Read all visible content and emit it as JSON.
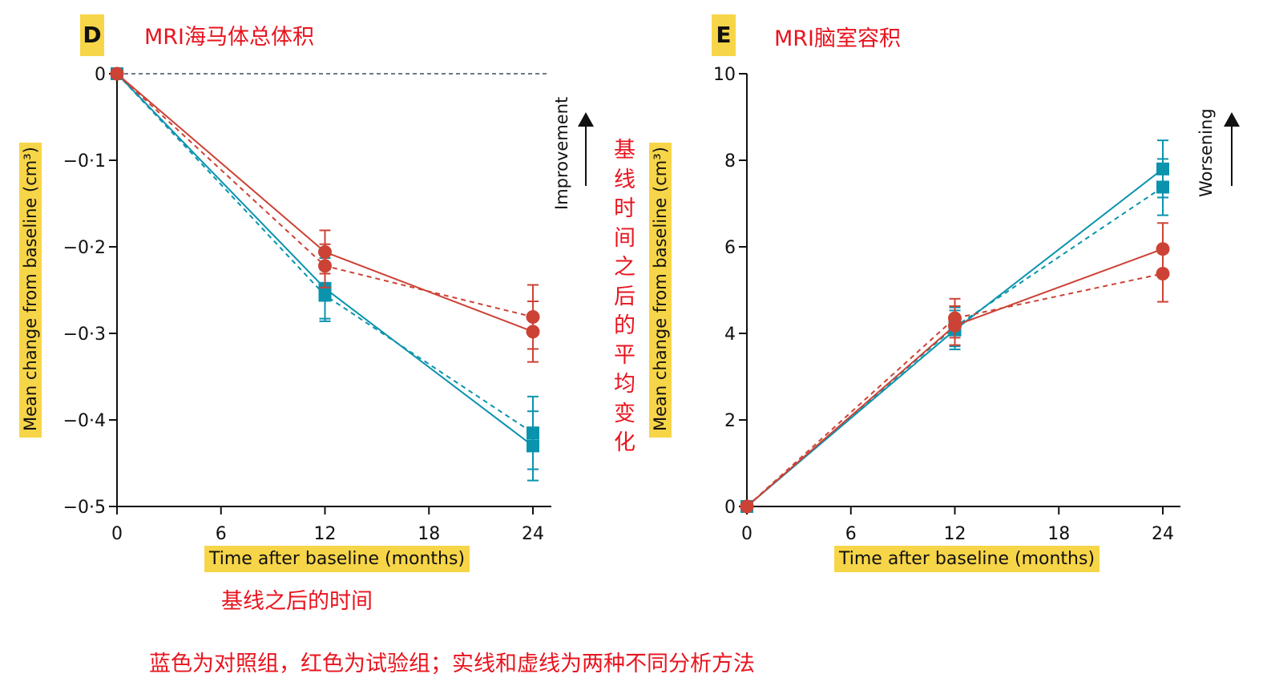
{
  "chart_data": [
    {
      "type": "line",
      "panel": "D",
      "title": "MRI海马体总体积",
      "xlabel": "Time after baseline (months)",
      "ylabel": "Mean change from baseline (cm³)",
      "direction_label": "Improvement",
      "x_ticks": [
        "0",
        "6",
        "12",
        "18",
        "24"
      ],
      "y_ticks": [
        "0",
        "−0·1",
        "−0·2",
        "−0·3",
        "−0·4",
        "−0·5"
      ],
      "xlim": [
        0,
        24
      ],
      "ylim": [
        -0.5,
        0
      ],
      "reference_line": 0,
      "x": [
        0,
        12,
        24
      ],
      "series": [
        {
          "name": "control-solid",
          "color": "#0a93ad",
          "dashed": false,
          "marker": "square",
          "values": [
            0,
            -0.248,
            -0.43
          ],
          "errors": [
            0,
            0.035,
            0.04
          ]
        },
        {
          "name": "control-dashed",
          "color": "#0a93ad",
          "dashed": true,
          "marker": "square",
          "values": [
            0,
            -0.256,
            -0.415
          ],
          "errors": [
            0,
            0.03,
            0.042
          ]
        },
        {
          "name": "trial-solid",
          "color": "#cc4235",
          "dashed": false,
          "marker": "circle",
          "values": [
            0,
            -0.206,
            -0.298
          ],
          "errors": [
            0,
            0.025,
            0.035
          ]
        },
        {
          "name": "trial-dashed",
          "color": "#cc4235",
          "dashed": true,
          "marker": "circle",
          "values": [
            0,
            -0.222,
            -0.281
          ],
          "errors": [
            0,
            0.025,
            0.037
          ]
        }
      ]
    },
    {
      "type": "line",
      "panel": "E",
      "title": "MRI脑室容积",
      "xlabel": "Time after baseline (months)",
      "ylabel": "Mean change from baseline (cm³)",
      "direction_label": "Worsening",
      "x_ticks": [
        "0",
        "6",
        "12",
        "18",
        "24"
      ],
      "y_ticks": [
        "0",
        "2",
        "4",
        "6",
        "8",
        "10"
      ],
      "xlim": [
        0,
        24
      ],
      "ylim": [
        0,
        10
      ],
      "x": [
        0,
        12,
        24
      ],
      "series": [
        {
          "name": "control-solid",
          "color": "#0a93ad",
          "dashed": false,
          "marker": "square",
          "values": [
            0,
            4.08,
            7.8
          ],
          "errors": [
            0,
            0.45,
            0.66
          ]
        },
        {
          "name": "control-dashed",
          "color": "#0a93ad",
          "dashed": true,
          "marker": "square",
          "values": [
            0,
            4.15,
            7.38
          ],
          "errors": [
            0,
            0.45,
            0.65
          ]
        },
        {
          "name": "trial-solid",
          "color": "#cc4235",
          "dashed": false,
          "marker": "circle",
          "values": [
            0,
            4.18,
            5.95
          ],
          "errors": [
            0,
            0.45,
            0.6
          ]
        },
        {
          "name": "trial-dashed",
          "color": "#cc4235",
          "dashed": true,
          "marker": "circle",
          "values": [
            0,
            4.35,
            5.38
          ],
          "errors": [
            0,
            0.45,
            0.65
          ]
        }
      ]
    }
  ],
  "annotations": {
    "y_axis_cn": "基线时间之后的平均变化",
    "x_axis_cn": "基线之后的时间",
    "legend_cn": "蓝色为对照组，红色为试验组；实线和虚线为两种不同分析方法"
  }
}
